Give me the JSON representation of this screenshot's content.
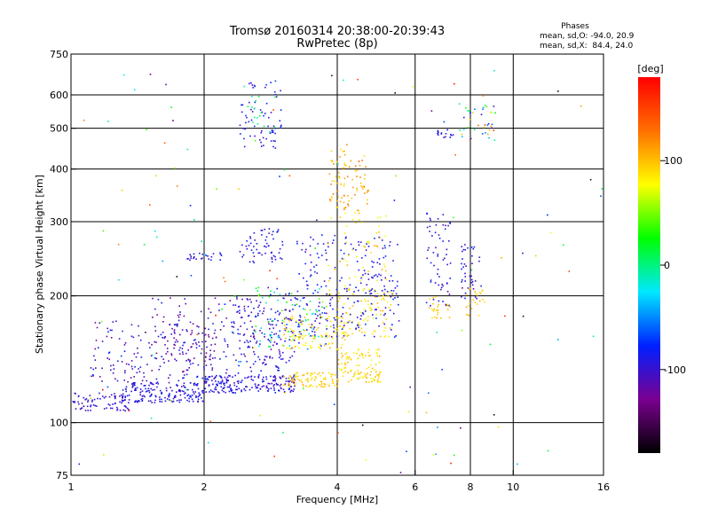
{
  "chart_data": {
    "type": "scatter",
    "title": "Tromsø 20160314 20:38:00-20:39:43",
    "subtitle": "RwPretec (8p)",
    "xlabel": "Frequency [MHz]",
    "ylabel": "Stationary phase Virtual Height [km]",
    "x_scale": "log",
    "y_scale": "log",
    "xlim": [
      1,
      16
    ],
    "ylim": [
      75,
      750
    ],
    "x_ticks": [
      1,
      2,
      4,
      6,
      8,
      10,
      16
    ],
    "y_ticks": [
      75,
      100,
      200,
      300,
      400,
      500,
      600,
      750
    ],
    "x_gridlines": [
      2,
      4,
      6,
      8,
      10
    ],
    "y_gridlines": [
      100,
      200,
      300,
      400,
      500,
      600
    ],
    "grid": true,
    "stats": {
      "heading": "Phases",
      "line_o": "mean, sd,O: -94.0, 20.9",
      "line_x": "mean, sd,X:  84.4, 24.0"
    },
    "colorbar": {
      "label": "[deg]",
      "range": [
        -180,
        180
      ],
      "ticks": [
        100,
        0,
        -100
      ],
      "tick_labels": [
        "100",
        "0",
        "-100"
      ],
      "colors": [
        "#000000",
        "#7a0090",
        "#0020ff",
        "#00e8ff",
        "#00ff00",
        "#ffff00",
        "#ff7000",
        "#ff0000"
      ]
    },
    "point_clusters": [
      {
        "f": [
          1.0,
          1.35
        ],
        "h": [
          107,
          118
        ],
        "phase": [
          -115,
          -85
        ],
        "n": 80
      },
      {
        "f": [
          1.3,
          2.0
        ],
        "h": [
          112,
          125
        ],
        "phase": [
          -110,
          -80
        ],
        "n": 180
      },
      {
        "f": [
          2.0,
          3.2
        ],
        "h": [
          118,
          130
        ],
        "phase": [
          -110,
          -80
        ],
        "n": 200
      },
      {
        "f": [
          1.1,
          2.2
        ],
        "h": [
          125,
          175
        ],
        "phase": [
          -130,
          -70
        ],
        "n": 170
      },
      {
        "f": [
          1.5,
          2.6
        ],
        "h": [
          140,
          200
        ],
        "phase": [
          -140,
          -90
        ],
        "n": 120
      },
      {
        "f": [
          2.2,
          3.2
        ],
        "h": [
          130,
          200
        ],
        "phase": [
          -120,
          -75
        ],
        "n": 150
      },
      {
        "f": [
          2.6,
          3.8
        ],
        "h": [
          150,
          210
        ],
        "phase": [
          -120,
          60
        ],
        "n": 120
      },
      {
        "f": [
          3.0,
          4.0
        ],
        "h": [
          122,
          132
        ],
        "phase": [
          80,
          110
        ],
        "n": 90
      },
      {
        "f": [
          3.0,
          4.2
        ],
        "h": [
          150,
          180
        ],
        "phase": [
          70,
          110
        ],
        "n": 110
      },
      {
        "f": [
          4.0,
          5.0
        ],
        "h": [
          125,
          150
        ],
        "phase": [
          70,
          110
        ],
        "n": 110
      },
      {
        "f": [
          4.0,
          5.3
        ],
        "h": [
          160,
          210
        ],
        "phase": [
          70,
          110
        ],
        "n": 90
      },
      {
        "f": [
          3.2,
          5.5
        ],
        "h": [
          160,
          280
        ],
        "phase": [
          -110,
          -70
        ],
        "n": 230
      },
      {
        "f": [
          3.8,
          4.7
        ],
        "h": [
          320,
          460
        ],
        "phase": [
          85,
          130
        ],
        "n": 90
      },
      {
        "f": [
          3.8,
          5.2
        ],
        "h": [
          200,
          320
        ],
        "phase": [
          70,
          110
        ],
        "n": 60
      },
      {
        "f": [
          2.4,
          3.0
        ],
        "h": [
          240,
          290
        ],
        "phase": [
          -110,
          -80
        ],
        "n": 60
      },
      {
        "f": [
          1.8,
          2.2
        ],
        "h": [
          243,
          255
        ],
        "phase": [
          -110,
          -80
        ],
        "n": 25
      },
      {
        "f": [
          2.4,
          3.0
        ],
        "h": [
          450,
          650
        ],
        "phase": [
          -110,
          -70
        ],
        "n": 70
      },
      {
        "f": [
          2.5,
          2.9
        ],
        "h": [
          500,
          600
        ],
        "phase": [
          -20,
          20
        ],
        "n": 15
      },
      {
        "f": [
          6.3,
          7.2
        ],
        "h": [
          190,
          320
        ],
        "phase": [
          -110,
          -80
        ],
        "n": 60
      },
      {
        "f": [
          6.4,
          7.2
        ],
        "h": [
          175,
          200
        ],
        "phase": [
          85,
          110
        ],
        "n": 25
      },
      {
        "f": [
          7.6,
          8.4
        ],
        "h": [
          195,
          270
        ],
        "phase": [
          -110,
          -80
        ],
        "n": 40
      },
      {
        "f": [
          7.8,
          8.6
        ],
        "h": [
          180,
          210
        ],
        "phase": [
          85,
          110
        ],
        "n": 25
      },
      {
        "f": [
          7.5,
          9.2
        ],
        "h": [
          470,
          580
        ],
        "phase": [
          -110,
          170
        ],
        "n": 40
      },
      {
        "f": [
          6.7,
          7.3
        ],
        "h": [
          470,
          500
        ],
        "phase": [
          -100,
          -80
        ],
        "n": 15
      },
      {
        "f": [
          1.0,
          16.0
        ],
        "h": [
          75,
          700
        ],
        "phase": [
          -180,
          180
        ],
        "n": 140
      }
    ]
  }
}
